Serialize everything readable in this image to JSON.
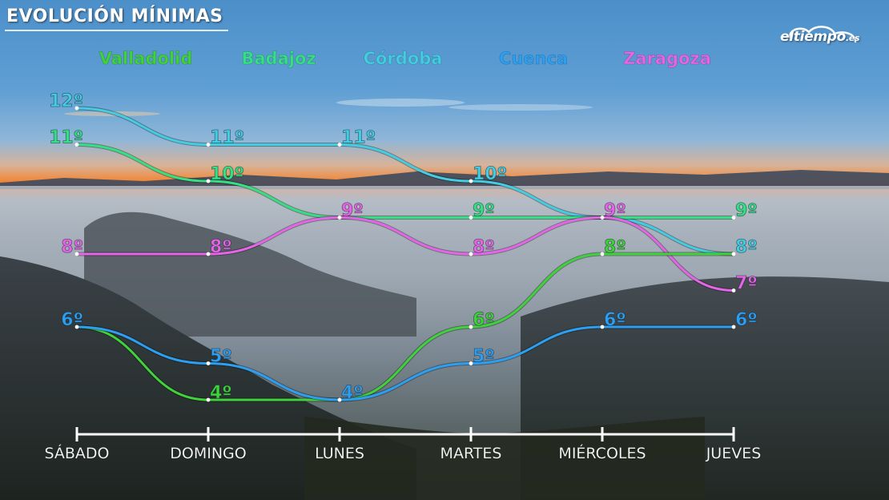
{
  "header": {
    "title": "EVOLUCIÓN MÍNIMAS",
    "logo_text": "eltiempo",
    "logo_suffix": ".es"
  },
  "chart_data": {
    "type": "line",
    "title": "EVOLUCIÓN MÍNIMAS",
    "xlabel": "",
    "ylabel": "",
    "categories": [
      "SÁBADO",
      "DOMINGO",
      "LUNES",
      "MARTES",
      "MIÉRCOLES",
      "JUEVES"
    ],
    "unit": "º",
    "legend_placement": "top",
    "grid": false,
    "series": [
      {
        "name": "Valladolid",
        "color": "#3fd23a",
        "values": [
          6,
          4,
          4,
          6,
          8,
          8
        ]
      },
      {
        "name": "Badajoz",
        "color": "#35df84",
        "values": [
          11,
          10,
          9,
          9,
          9,
          9
        ]
      },
      {
        "name": "Córdoba",
        "color": "#43cde2",
        "values": [
          12,
          11,
          11,
          10,
          9,
          8
        ]
      },
      {
        "name": "Cuenca",
        "color": "#2d9ff0",
        "values": [
          6,
          5,
          4,
          5,
          6,
          6
        ]
      },
      {
        "name": "Zaragoza",
        "color": "#e565e6",
        "values": [
          8,
          8,
          9,
          8,
          9,
          7
        ]
      }
    ],
    "point_labels": [
      {
        "series": "Córdoba",
        "texts": [
          "12º",
          "11º",
          "11º",
          "10º",
          "",
          "8º"
        ]
      },
      {
        "series": "Badajoz",
        "texts": [
          "11º",
          "10º",
          "",
          "9º",
          "",
          "9º"
        ]
      },
      {
        "series": "Zaragoza",
        "texts": [
          "8º",
          "8º",
          "9º",
          "8º",
          "9º",
          "7º"
        ]
      },
      {
        "series": "Cuenca",
        "texts": [
          "6º",
          "5º",
          "4º",
          "5º",
          "6º",
          "6º"
        ]
      },
      {
        "series": "Valladolid",
        "texts": [
          "",
          "4º",
          "",
          "6º",
          "8º",
          ""
        ]
      }
    ]
  }
}
